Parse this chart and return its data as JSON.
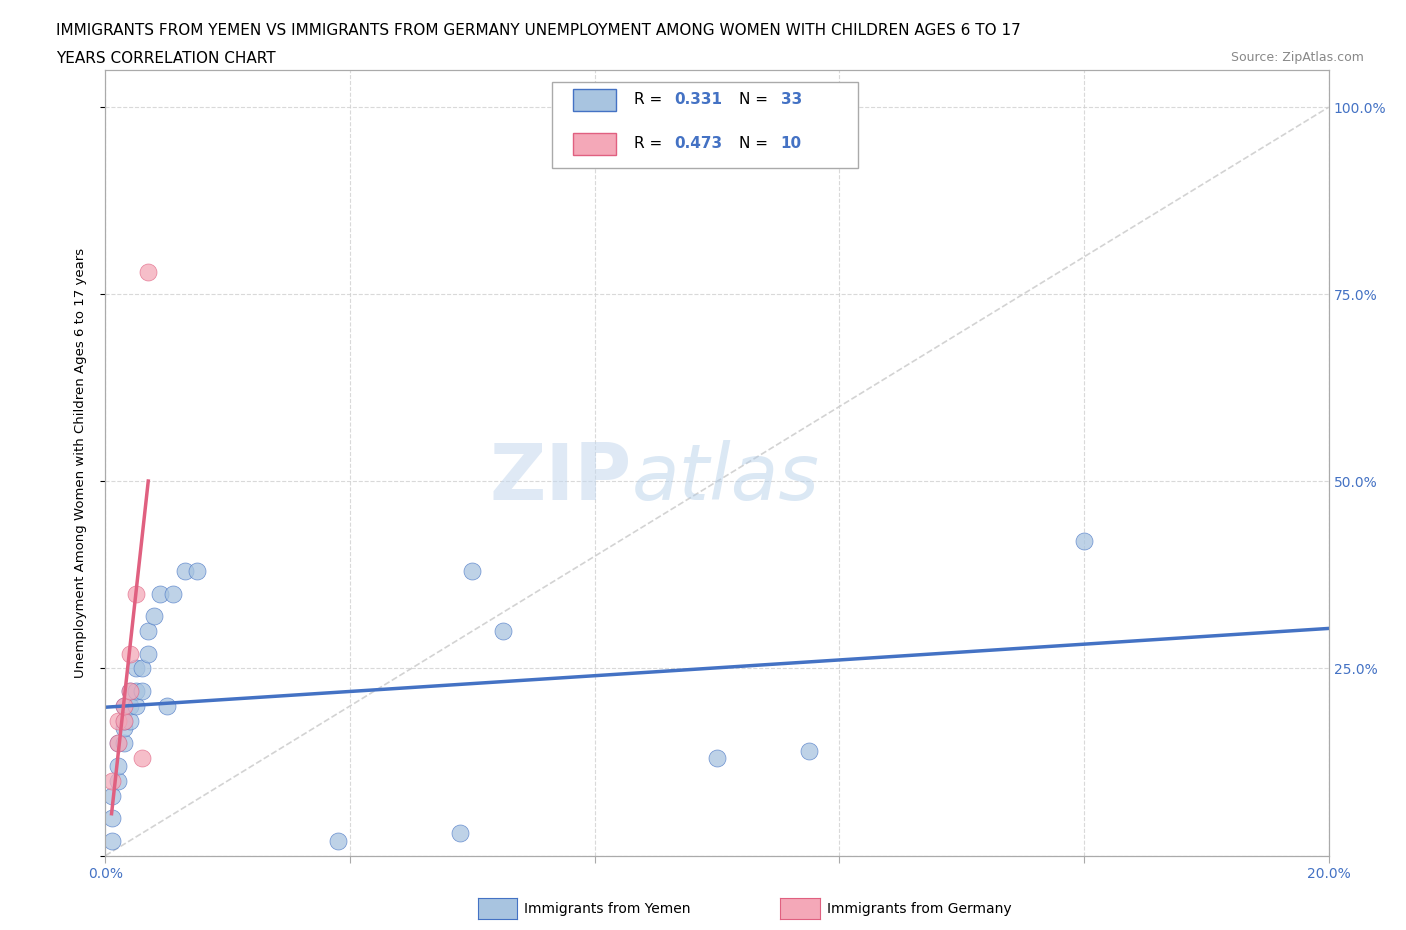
{
  "title_line1": "IMMIGRANTS FROM YEMEN VS IMMIGRANTS FROM GERMANY UNEMPLOYMENT AMONG WOMEN WITH CHILDREN AGES 6 TO 17",
  "title_line2": "YEARS CORRELATION CHART",
  "source": "Source: ZipAtlas.com",
  "ylabel": "Unemployment Among Women with Children Ages 6 to 17 years",
  "xlim": [
    0.0,
    0.2
  ],
  "ylim": [
    0.0,
    1.05
  ],
  "xticks": [
    0.0,
    0.04,
    0.08,
    0.12,
    0.16,
    0.2
  ],
  "xticklabels": [
    "0.0%",
    "",
    "",
    "",
    "",
    "20.0%"
  ],
  "yticks": [
    0.0,
    0.25,
    0.5,
    0.75,
    1.0
  ],
  "yticklabels": [
    "",
    "25.0%",
    "50.0%",
    "75.0%",
    "100.0%"
  ],
  "yemen_color": "#a8c4e0",
  "germany_color": "#f4a8b8",
  "trendline_yemen_color": "#4472c4",
  "trendline_germany_color": "#e06080",
  "diagonal_color": "#c8c8c8",
  "watermark_ZIP": "ZIP",
  "watermark_atlas": "atlas",
  "yemen_x": [
    0.001,
    0.001,
    0.001,
    0.002,
    0.002,
    0.002,
    0.003,
    0.003,
    0.003,
    0.003,
    0.004,
    0.004,
    0.004,
    0.005,
    0.005,
    0.005,
    0.006,
    0.006,
    0.007,
    0.007,
    0.008,
    0.009,
    0.01,
    0.011,
    0.013,
    0.015,
    0.038,
    0.058,
    0.06,
    0.065,
    0.1,
    0.115,
    0.16
  ],
  "yemen_y": [
    0.02,
    0.05,
    0.08,
    0.1,
    0.12,
    0.15,
    0.15,
    0.17,
    0.18,
    0.2,
    0.18,
    0.2,
    0.22,
    0.2,
    0.22,
    0.25,
    0.22,
    0.25,
    0.27,
    0.3,
    0.32,
    0.35,
    0.2,
    0.35,
    0.38,
    0.38,
    0.02,
    0.03,
    0.38,
    0.3,
    0.13,
    0.14,
    0.42
  ],
  "germany_x": [
    0.001,
    0.002,
    0.002,
    0.003,
    0.003,
    0.004,
    0.004,
    0.005,
    0.006,
    0.007
  ],
  "germany_y": [
    0.1,
    0.15,
    0.18,
    0.18,
    0.2,
    0.22,
    0.27,
    0.35,
    0.13,
    0.78
  ],
  "background_color": "#ffffff",
  "plot_bg_color": "#ffffff",
  "grid_color": "#d0d0d0"
}
